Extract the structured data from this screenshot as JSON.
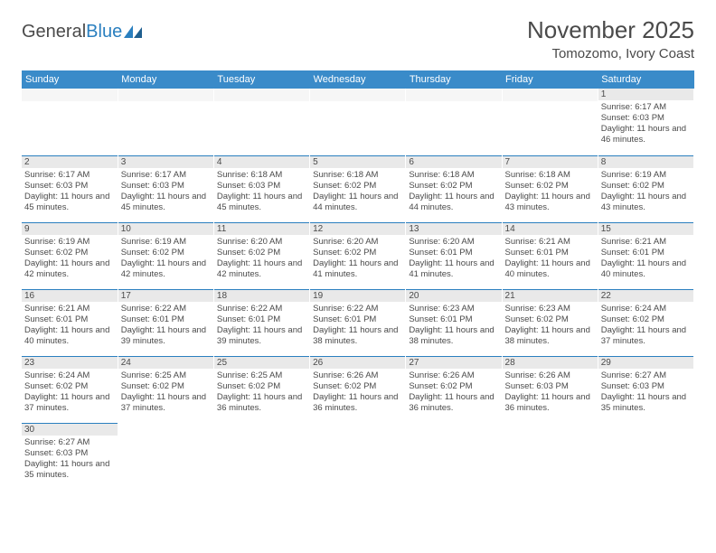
{
  "logo": {
    "text_general": "General",
    "text_blue": "Blue"
  },
  "header": {
    "month_title": "November 2025",
    "location": "Tomozomo, Ivory Coast"
  },
  "colors": {
    "header_bg": "#3a8bc9",
    "daynum_bg": "#e9e9e9",
    "cell_border_top": "#2a7fbf",
    "text": "#4a4a4a",
    "logo_blue": "#2a7fbf"
  },
  "day_names": [
    "Sunday",
    "Monday",
    "Tuesday",
    "Wednesday",
    "Thursday",
    "Friday",
    "Saturday"
  ],
  "labels": {
    "sunrise": "Sunrise: ",
    "sunset": "Sunset: ",
    "daylight": "Daylight: "
  },
  "weeks": [
    [
      null,
      null,
      null,
      null,
      null,
      null,
      {
        "n": "1",
        "sr": "6:17 AM",
        "ss": "6:03 PM",
        "dl": "11 hours and 46 minutes."
      }
    ],
    [
      {
        "n": "2",
        "sr": "6:17 AM",
        "ss": "6:03 PM",
        "dl": "11 hours and 45 minutes."
      },
      {
        "n": "3",
        "sr": "6:17 AM",
        "ss": "6:03 PM",
        "dl": "11 hours and 45 minutes."
      },
      {
        "n": "4",
        "sr": "6:18 AM",
        "ss": "6:03 PM",
        "dl": "11 hours and 45 minutes."
      },
      {
        "n": "5",
        "sr": "6:18 AM",
        "ss": "6:02 PM",
        "dl": "11 hours and 44 minutes."
      },
      {
        "n": "6",
        "sr": "6:18 AM",
        "ss": "6:02 PM",
        "dl": "11 hours and 44 minutes."
      },
      {
        "n": "7",
        "sr": "6:18 AM",
        "ss": "6:02 PM",
        "dl": "11 hours and 43 minutes."
      },
      {
        "n": "8",
        "sr": "6:19 AM",
        "ss": "6:02 PM",
        "dl": "11 hours and 43 minutes."
      }
    ],
    [
      {
        "n": "9",
        "sr": "6:19 AM",
        "ss": "6:02 PM",
        "dl": "11 hours and 42 minutes."
      },
      {
        "n": "10",
        "sr": "6:19 AM",
        "ss": "6:02 PM",
        "dl": "11 hours and 42 minutes."
      },
      {
        "n": "11",
        "sr": "6:20 AM",
        "ss": "6:02 PM",
        "dl": "11 hours and 42 minutes."
      },
      {
        "n": "12",
        "sr": "6:20 AM",
        "ss": "6:02 PM",
        "dl": "11 hours and 41 minutes."
      },
      {
        "n": "13",
        "sr": "6:20 AM",
        "ss": "6:01 PM",
        "dl": "11 hours and 41 minutes."
      },
      {
        "n": "14",
        "sr": "6:21 AM",
        "ss": "6:01 PM",
        "dl": "11 hours and 40 minutes."
      },
      {
        "n": "15",
        "sr": "6:21 AM",
        "ss": "6:01 PM",
        "dl": "11 hours and 40 minutes."
      }
    ],
    [
      {
        "n": "16",
        "sr": "6:21 AM",
        "ss": "6:01 PM",
        "dl": "11 hours and 40 minutes."
      },
      {
        "n": "17",
        "sr": "6:22 AM",
        "ss": "6:01 PM",
        "dl": "11 hours and 39 minutes."
      },
      {
        "n": "18",
        "sr": "6:22 AM",
        "ss": "6:01 PM",
        "dl": "11 hours and 39 minutes."
      },
      {
        "n": "19",
        "sr": "6:22 AM",
        "ss": "6:01 PM",
        "dl": "11 hours and 38 minutes."
      },
      {
        "n": "20",
        "sr": "6:23 AM",
        "ss": "6:01 PM",
        "dl": "11 hours and 38 minutes."
      },
      {
        "n": "21",
        "sr": "6:23 AM",
        "ss": "6:02 PM",
        "dl": "11 hours and 38 minutes."
      },
      {
        "n": "22",
        "sr": "6:24 AM",
        "ss": "6:02 PM",
        "dl": "11 hours and 37 minutes."
      }
    ],
    [
      {
        "n": "23",
        "sr": "6:24 AM",
        "ss": "6:02 PM",
        "dl": "11 hours and 37 minutes."
      },
      {
        "n": "24",
        "sr": "6:25 AM",
        "ss": "6:02 PM",
        "dl": "11 hours and 37 minutes."
      },
      {
        "n": "25",
        "sr": "6:25 AM",
        "ss": "6:02 PM",
        "dl": "11 hours and 36 minutes."
      },
      {
        "n": "26",
        "sr": "6:26 AM",
        "ss": "6:02 PM",
        "dl": "11 hours and 36 minutes."
      },
      {
        "n": "27",
        "sr": "6:26 AM",
        "ss": "6:02 PM",
        "dl": "11 hours and 36 minutes."
      },
      {
        "n": "28",
        "sr": "6:26 AM",
        "ss": "6:03 PM",
        "dl": "11 hours and 36 minutes."
      },
      {
        "n": "29",
        "sr": "6:27 AM",
        "ss": "6:03 PM",
        "dl": "11 hours and 35 minutes."
      }
    ],
    [
      {
        "n": "30",
        "sr": "6:27 AM",
        "ss": "6:03 PM",
        "dl": "11 hours and 35 minutes."
      },
      null,
      null,
      null,
      null,
      null,
      null
    ]
  ]
}
